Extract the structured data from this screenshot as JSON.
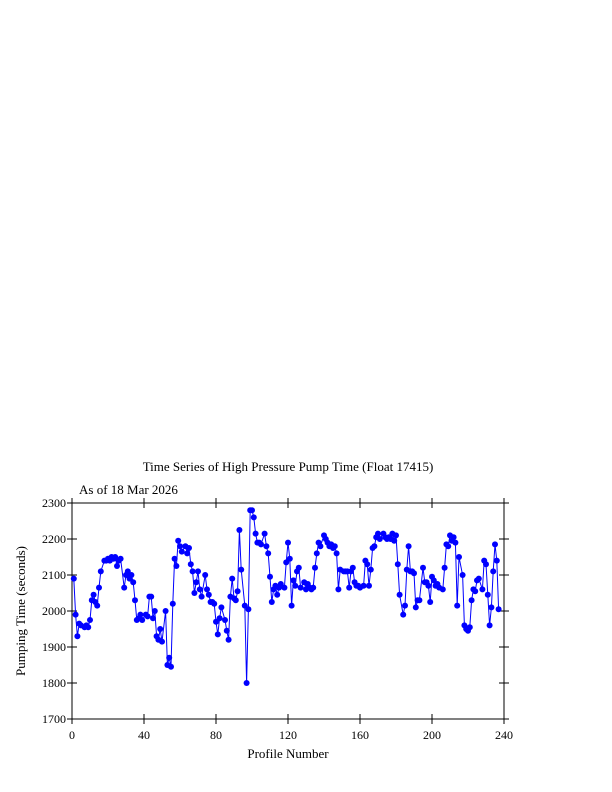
{
  "chart_data": {
    "type": "line",
    "title": "Time Series of High Pressure Pump Time (Float 17415)",
    "subtitle": "As of 18 Mar 2026",
    "x_label": "Profile Number",
    "y_label": "Pumping Time (seconds)",
    "xlim": [
      0,
      240
    ],
    "xticks": [
      0,
      40,
      80,
      120,
      160,
      200,
      240
    ],
    "ylim": [
      1700,
      2300
    ],
    "yticks": [
      1700,
      1800,
      1900,
      2000,
      2100,
      2200,
      2300
    ],
    "x": [
      1,
      2,
      3,
      4,
      5,
      7,
      8,
      9,
      10,
      11,
      12,
      13,
      14,
      15,
      16,
      18,
      19,
      20,
      21,
      22,
      23,
      24,
      25,
      26,
      27,
      29,
      30,
      31,
      32,
      33,
      34,
      35,
      36,
      37,
      38,
      39,
      41,
      42,
      43,
      44,
      45,
      46,
      47,
      48,
      49,
      50,
      52,
      53,
      54,
      55,
      56,
      57,
      58,
      59,
      60,
      61,
      63,
      64,
      65,
      66,
      67,
      68,
      69,
      70,
      71,
      72,
      74,
      75,
      76,
      77,
      78,
      79,
      80,
      81,
      82,
      83,
      85,
      86,
      87,
      88,
      89,
      90,
      91,
      92,
      93,
      94,
      96,
      97,
      98,
      99,
      100,
      101,
      102,
      103,
      104,
      105,
      107,
      108,
      109,
      110,
      111,
      112,
      113,
      114,
      115,
      116,
      118,
      119,
      120,
      121,
      122,
      123,
      124,
      125,
      126,
      127,
      129,
      130,
      131,
      132,
      133,
      134,
      135,
      136,
      137,
      138,
      140,
      141,
      142,
      143,
      144,
      145,
      146,
      147,
      148,
      149,
      151,
      152,
      153,
      154,
      155,
      156,
      157,
      158,
      159,
      160,
      162,
      163,
      164,
      165,
      166,
      167,
      168,
      169,
      170,
      171,
      173,
      174,
      175,
      176,
      177,
      178,
      179,
      180,
      181,
      182,
      184,
      185,
      186,
      187,
      188,
      189,
      190,
      191,
      192,
      193,
      195,
      196,
      197,
      198,
      199,
      200,
      201,
      202,
      203,
      204,
      206,
      207,
      208,
      209,
      210,
      211,
      212,
      213,
      214,
      215,
      217,
      218,
      219,
      220,
      221,
      222,
      223,
      224,
      225,
      226,
      228,
      229,
      230,
      231,
      232,
      233,
      234,
      235,
      236,
      237
    ],
    "series": [
      {
        "color": "#0000ff",
        "values": [
          2090,
          1990,
          1930,
          1965,
          1960,
          1955,
          1960,
          1955,
          1975,
          2030,
          2045,
          2025,
          2015,
          2065,
          2110,
          2140,
          2140,
          2145,
          2140,
          2150,
          2145,
          2150,
          2125,
          2140,
          2145,
          2065,
          2100,
          2110,
          2090,
          2100,
          2080,
          2030,
          1975,
          1980,
          1990,
          1975,
          1990,
          1985,
          2040,
          2040,
          1980,
          2000,
          1930,
          1920,
          1950,
          1915,
          2000,
          1850,
          1870,
          1845,
          2020,
          2145,
          2125,
          2195,
          2180,
          2165,
          2180,
          2160,
          2175,
          2130,
          2110,
          2050,
          2080,
          2110,
          2060,
          2040,
          2100,
          2060,
          2045,
          2025,
          2025,
          2020,
          1970,
          1935,
          1980,
          2010,
          1975,
          1945,
          1920,
          2040,
          2090,
          2035,
          2030,
          2055,
          2225,
          2115,
          2015,
          1800,
          2005,
          2280,
          2280,
          2260,
          2215,
          2190,
          2190,
          2185,
          2215,
          2180,
          2160,
          2095,
          2025,
          2060,
          2070,
          2045,
          2065,
          2075,
          2065,
          2135,
          2190,
          2145,
          2015,
          2085,
          2070,
          2110,
          2120,
          2065,
          2080,
          2060,
          2075,
          2065,
          2060,
          2065,
          2120,
          2160,
          2190,
          2180,
          2210,
          2200,
          2190,
          2180,
          2185,
          2175,
          2180,
          2160,
          2060,
          2115,
          2110,
          2110,
          2110,
          2065,
          2110,
          2120,
          2080,
          2070,
          2070,
          2065,
          2070,
          2140,
          2130,
          2070,
          2115,
          2175,
          2180,
          2205,
          2215,
          2200,
          2215,
          2205,
          2200,
          2205,
          2200,
          2215,
          2195,
          2210,
          2130,
          2045,
          1990,
          2015,
          2115,
          2180,
          2110,
          2110,
          2105,
          2010,
          2030,
          2030,
          2120,
          2080,
          2080,
          2070,
          2025,
          2095,
          2085,
          2070,
          2075,
          2065,
          2060,
          2120,
          2185,
          2180,
          2210,
          2195,
          2205,
          2190,
          2015,
          2150,
          2100,
          1960,
          1950,
          1945,
          1955,
          2030,
          2060,
          2055,
          2085,
          2090,
          2060,
          2140,
          2130,
          2045,
          1960,
          2010,
          2110,
          2185,
          2140,
          2005
        ]
      }
    ]
  }
}
